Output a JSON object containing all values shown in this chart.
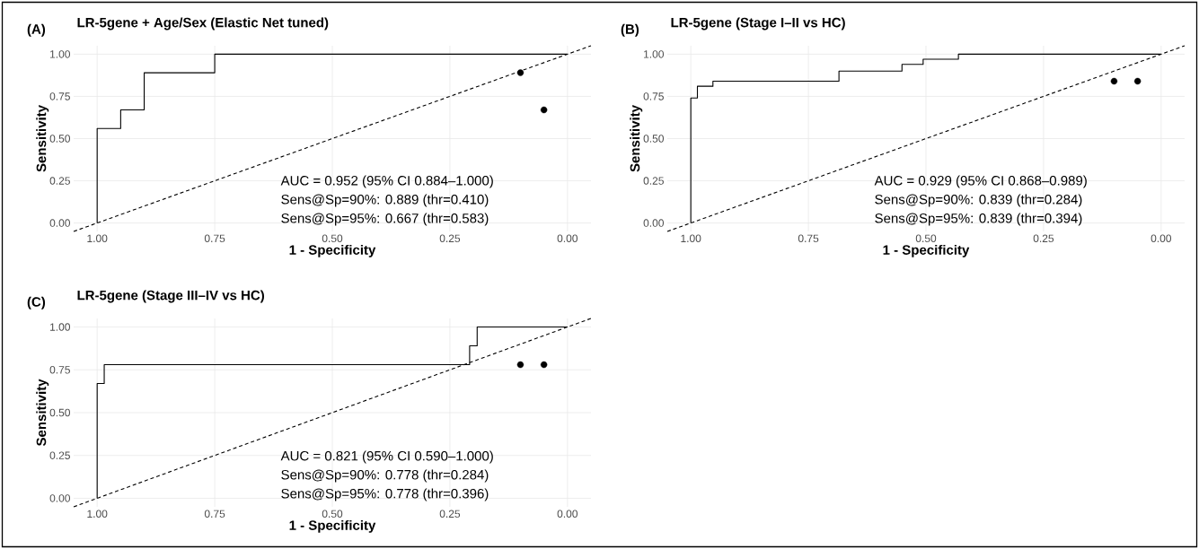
{
  "chart_data": [
    {
      "type": "line",
      "title": "LR-5gene + Age/Sex (Elastic Net tuned)",
      "xlabel": "1 - Specificity",
      "ylabel": "Sensitivity",
      "annotations": [
        "(A)",
        "AUC = 0.952 (95% CI 0.884–1.000)",
        "Sens@Sp=90%: 0.889 (thr=0.410)",
        "Sens@Sp=95%: 0.667 (thr=0.583)"
      ],
      "xlim": [
        1.05,
        -0.05
      ],
      "ylim": [
        -0.05,
        1.05
      ],
      "xticks": [
        {
          "value": 1,
          "label": "1.00"
        },
        {
          "value": 0.75,
          "label": "0.75"
        },
        {
          "value": 0.5,
          "label": "0.50"
        },
        {
          "value": 0.25,
          "label": "0.25"
        },
        {
          "value": 0,
          "label": "0.00"
        }
      ],
      "yticks": [
        {
          "value": 0,
          "label": "0.00"
        },
        {
          "value": 0.25,
          "label": "0.25"
        },
        {
          "value": 0.5,
          "label": "0.50"
        },
        {
          "value": 0.75,
          "label": "0.75"
        },
        {
          "value": 1,
          "label": "1.00"
        }
      ],
      "grid": true,
      "series": [
        {
          "color": "#000000",
          "line_style": "solid",
          "x": [
            1,
            1,
            0.95,
            0.95,
            0.9,
            0.9,
            0.75,
            0.75,
            0
          ],
          "values": [
            0,
            0.56,
            0.56,
            0.67,
            0.67,
            0.89,
            0.89,
            1,
            1
          ]
        },
        {
          "color": "#000000",
          "line_style": "dashed",
          "x": [
            1.05,
            -0.05
          ],
          "values": [
            -0.05,
            1.05
          ]
        },
        {
          "type": "scatter",
          "color": "#000000",
          "marker": "circle",
          "x": [
            0.1,
            0.05
          ],
          "values": [
            0.89,
            0.67
          ]
        }
      ]
    },
    {
      "type": "line",
      "title": "LR-5gene (Stage I–II vs HC)",
      "xlabel": "1 - Specificity",
      "ylabel": "Sensitivity",
      "annotations": [
        "(B)",
        "AUC = 0.929 (95% CI 0.868–0.989)",
        "Sens@Sp=90%: 0.839 (thr=0.284)",
        "Sens@Sp=95%: 0.839 (thr=0.394)"
      ],
      "xlim": [
        1.05,
        -0.05
      ],
      "ylim": [
        -0.05,
        1.05
      ],
      "xticks": [
        {
          "value": 1,
          "label": "1.00"
        },
        {
          "value": 0.75,
          "label": "0.75"
        },
        {
          "value": 0.5,
          "label": "0.50"
        },
        {
          "value": 0.25,
          "label": "0.25"
        },
        {
          "value": 0,
          "label": "0.00"
        }
      ],
      "yticks": [
        {
          "value": 0,
          "label": "0.00"
        },
        {
          "value": 0.25,
          "label": "0.25"
        },
        {
          "value": 0.5,
          "label": "0.50"
        },
        {
          "value": 0.75,
          "label": "0.75"
        },
        {
          "value": 1,
          "label": "1.00"
        }
      ],
      "grid": true,
      "series": [
        {
          "color": "#000000",
          "line_style": "solid",
          "x": [
            1,
            1,
            0.986,
            0.986,
            0.953,
            0.953,
            0.685,
            0.685,
            0.551,
            0.551,
            0.506,
            0.506,
            0.431,
            0.431,
            0
          ],
          "values": [
            0,
            0.74,
            0.74,
            0.81,
            0.81,
            0.84,
            0.84,
            0.9,
            0.9,
            0.94,
            0.94,
            0.97,
            0.97,
            1,
            1
          ]
        },
        {
          "color": "#000000",
          "line_style": "dashed",
          "x": [
            1.05,
            -0.05
          ],
          "values": [
            -0.05,
            1.05
          ]
        },
        {
          "type": "scatter",
          "color": "#000000",
          "marker": "circle",
          "x": [
            0.1,
            0.05
          ],
          "values": [
            0.84,
            0.84
          ]
        }
      ]
    },
    {
      "type": "line",
      "title": "LR-5gene (Stage III–IV vs HC)",
      "xlabel": "1 - Specificity",
      "ylabel": "Sensitivity",
      "annotations": [
        "(C)",
        "AUC = 0.821 (95% CI 0.590–1.000)",
        "Sens@Sp=90%: 0.778 (thr=0.284)",
        "Sens@Sp=95%: 0.778 (thr=0.396)"
      ],
      "xlim": [
        1.05,
        -0.05
      ],
      "ylim": [
        -0.05,
        1.05
      ],
      "xticks": [
        {
          "value": 1,
          "label": "1.00"
        },
        {
          "value": 0.75,
          "label": "0.75"
        },
        {
          "value": 0.5,
          "label": "0.50"
        },
        {
          "value": 0.25,
          "label": "0.25"
        },
        {
          "value": 0,
          "label": "0.00"
        }
      ],
      "yticks": [
        {
          "value": 0,
          "label": "0.00"
        },
        {
          "value": 0.25,
          "label": "0.25"
        },
        {
          "value": 0.5,
          "label": "0.50"
        },
        {
          "value": 0.75,
          "label": "0.75"
        },
        {
          "value": 1,
          "label": "1.00"
        }
      ],
      "grid": true,
      "series": [
        {
          "color": "#000000",
          "line_style": "solid",
          "x": [
            1,
            1,
            0.985,
            0.985,
            0.208,
            0.208,
            0.192,
            0.192,
            0
          ],
          "values": [
            0,
            0.67,
            0.67,
            0.78,
            0.78,
            0.89,
            0.89,
            1,
            1
          ]
        },
        {
          "color": "#000000",
          "line_style": "dashed",
          "x": [
            1.05,
            -0.05
          ],
          "values": [
            -0.05,
            1.05
          ]
        },
        {
          "type": "scatter",
          "color": "#000000",
          "marker": "circle",
          "x": [
            0.1,
            0.05
          ],
          "values": [
            0.78,
            0.78
          ]
        }
      ]
    }
  ]
}
